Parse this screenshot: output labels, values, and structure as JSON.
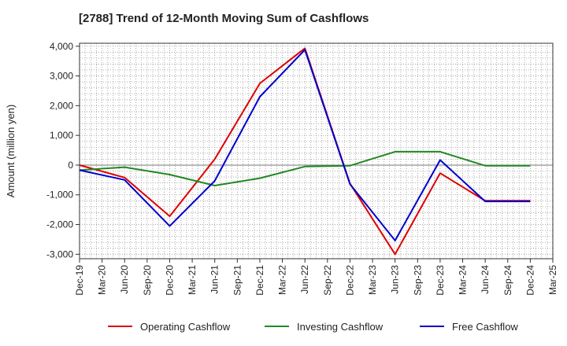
{
  "chart_data": {
    "type": "line",
    "title": "[2788]  Trend of 12-Month Moving Sum of Cashflows",
    "xlabel": "",
    "ylabel": "Amount (million yen)",
    "categories": [
      "Dec-19",
      "Mar-20",
      "Jun-20",
      "Sep-20",
      "Dec-20",
      "Mar-21",
      "Jun-21",
      "Sep-21",
      "Dec-21",
      "Mar-22",
      "Jun-22",
      "Sep-22",
      "Dec-22",
      "Mar-23",
      "Jun-23",
      "Sep-23",
      "Dec-23",
      "Mar-24",
      "Jun-24",
      "Sep-24",
      "Dec-24",
      "Mar-25"
    ],
    "ylim": [
      -3150,
      4100
    ],
    "yticks": [
      -3000,
      -2000,
      -1000,
      0,
      1000,
      2000,
      3000,
      4000
    ],
    "ytick_labels": [
      "-3,000",
      "-2,000",
      "-1,000",
      "0",
      "1,000",
      "2,000",
      "3,000",
      "4,000"
    ],
    "grid": true,
    "legend_position": "bottom",
    "series": [
      {
        "name": "Operating Cashflow",
        "color": "#dd0000",
        "values": [
          0,
          null,
          -420,
          null,
          -1720,
          null,
          200,
          null,
          2750,
          null,
          3930,
          null,
          -620,
          null,
          -3000,
          null,
          -270,
          null,
          -1200,
          null,
          -1200,
          null
        ]
      },
      {
        "name": "Investing Cashflow",
        "color": "#228822",
        "values": [
          -170,
          null,
          -70,
          null,
          -320,
          null,
          -690,
          null,
          -440,
          null,
          -50,
          null,
          -20,
          null,
          450,
          null,
          450,
          null,
          -20,
          null,
          -20,
          null
        ]
      },
      {
        "name": "Free Cashflow",
        "color": "#0000cc",
        "values": [
          -170,
          null,
          -500,
          null,
          -2050,
          null,
          -530,
          null,
          2300,
          null,
          3880,
          null,
          -640,
          null,
          -2540,
          null,
          170,
          null,
          -1220,
          null,
          -1220,
          null
        ]
      }
    ]
  }
}
